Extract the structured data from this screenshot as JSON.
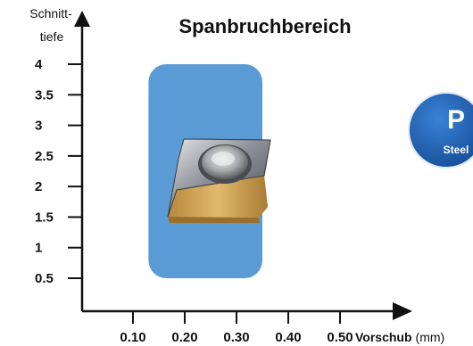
{
  "chart_data": {
    "type": "area",
    "title": "Spanbruchbereich",
    "ylabel": [
      "Schnitt-",
      "tiefe"
    ],
    "xlabel": {
      "name": "Vorschub",
      "unit": "(mm)"
    },
    "x_ticks": [
      "0.10",
      "0.20",
      "0.30",
      "0.40",
      "0.50"
    ],
    "y_ticks": [
      "0.5",
      "1",
      "1.5",
      "2",
      "2.5",
      "3",
      "3.5",
      "4"
    ],
    "x_tick_values": [
      0.1,
      0.2,
      0.3,
      0.4,
      0.5
    ],
    "y_tick_values": [
      0.5,
      1,
      1.5,
      2,
      2.5,
      3,
      3.5,
      4
    ],
    "chipbreaking_region": {
      "x_range": [
        0.13,
        0.35
      ],
      "y_range": [
        0.5,
        4.0
      ]
    },
    "colors": {
      "region": "#5b9bd5",
      "axis": "#111111",
      "title": "#111111"
    }
  },
  "badge": {
    "letter": "P",
    "label": "Steel",
    "color": "#1e5fb4"
  },
  "insert_icon": "indexable-insert-icon"
}
